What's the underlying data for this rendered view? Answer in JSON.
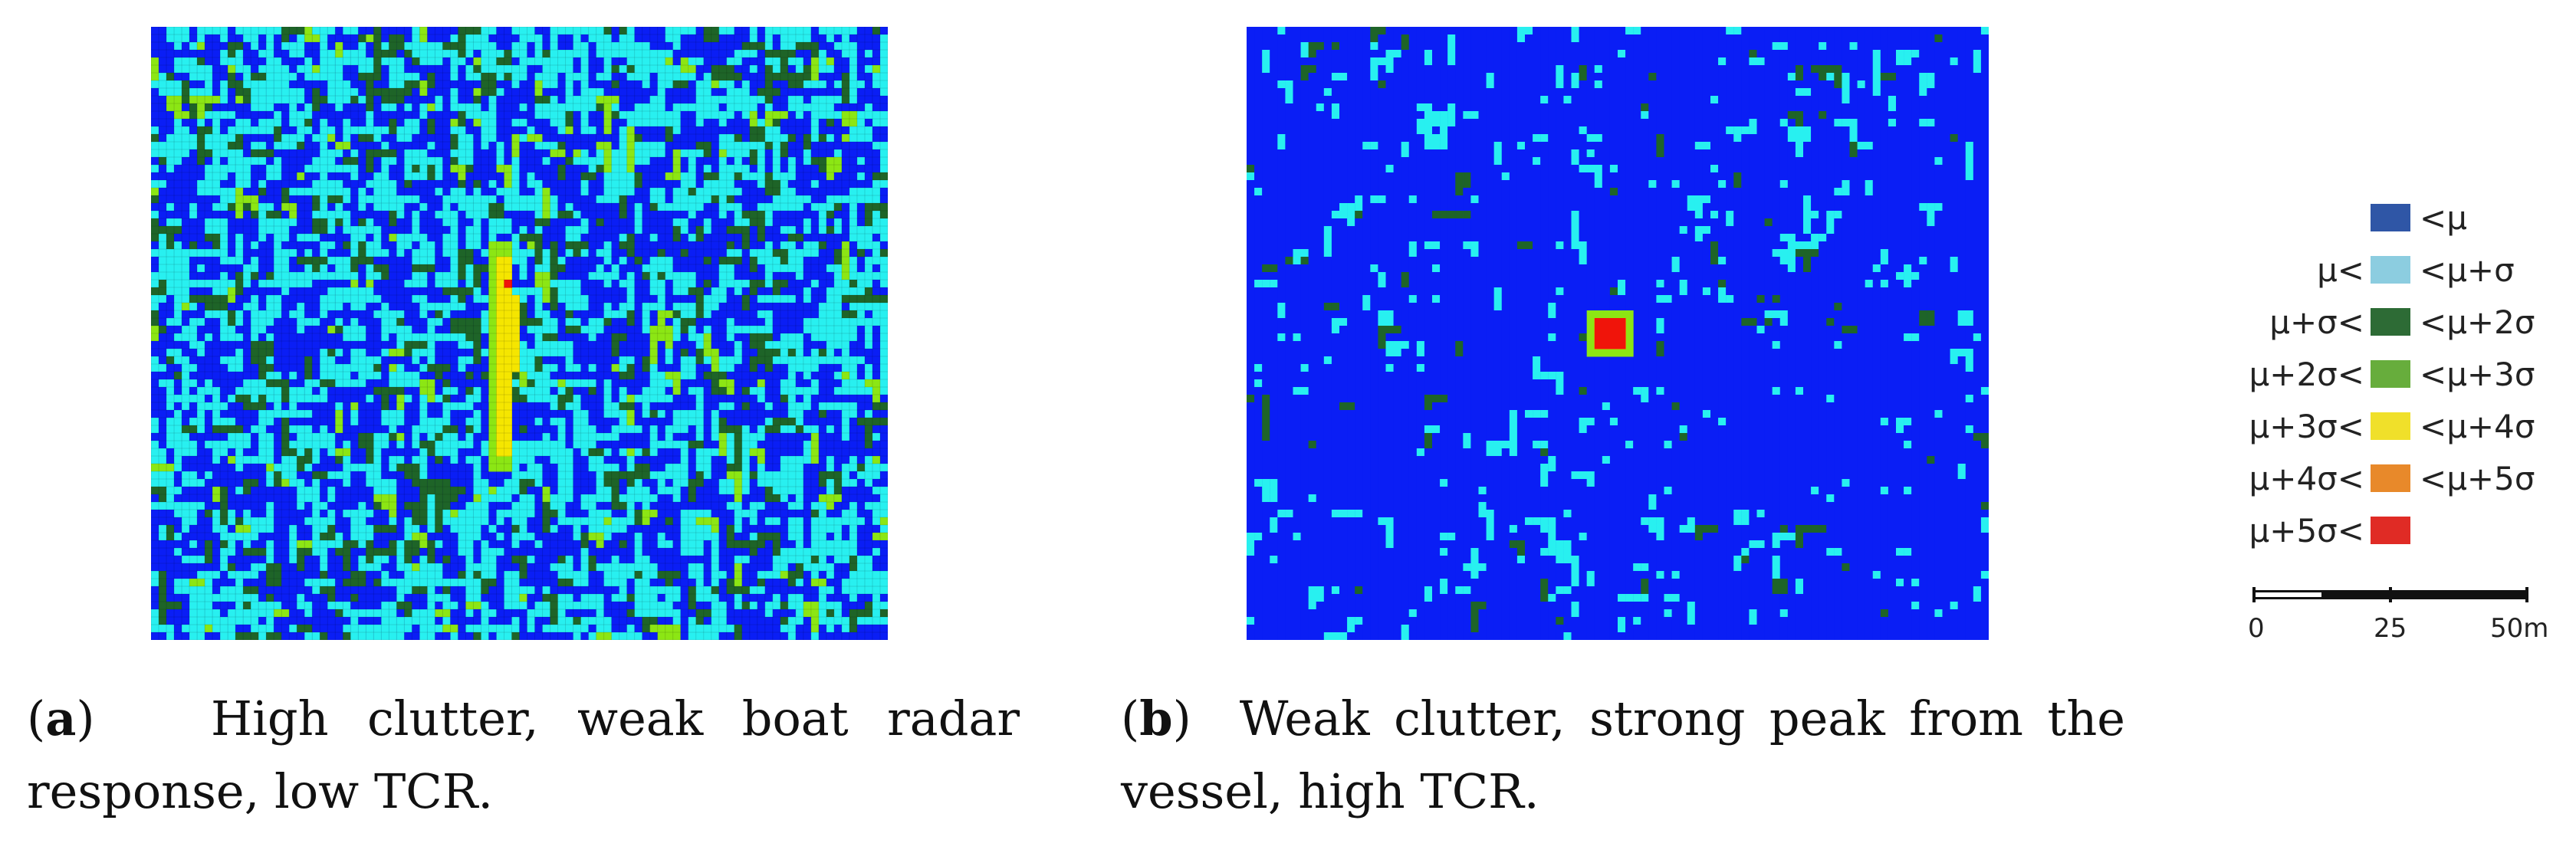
{
  "panels": [
    {
      "id": "a",
      "caption_letter": "a",
      "caption_text": "High clutter, weak boat radar response, low TCR.",
      "map": {
        "grid_cols": 96,
        "grid_rows": 80,
        "background_class": "lt_mu",
        "composition": {
          "lt_mu": 0.42,
          "mu_sigma": 0.42,
          "sigma_2sigma": 0.12,
          "2sigma_3sigma": 0.03
        },
        "peak_classes": [
          "2sigma_3sigma",
          "3sigma_4sigma",
          "gt_5sigma"
        ],
        "gridlines": true
      }
    },
    {
      "id": "b",
      "caption_letter": "b",
      "caption_text": "Weak clutter, strong peak from the vessel, high TCR.",
      "map": {
        "grid_cols": 96,
        "grid_rows": 80,
        "background_class": "lt_mu",
        "composition": {
          "lt_mu": 0.9,
          "mu_sigma": 0.08,
          "sigma_2sigma": 0.02
        },
        "peak_classes": [
          "2sigma_3sigma",
          "3sigma_4sigma",
          "gt_5sigma"
        ],
        "gridlines": false
      }
    }
  ],
  "legend": {
    "items": [
      {
        "lower": "",
        "upper": "<μ",
        "class": "lt_mu",
        "swatch": "#2f56a6",
        "map_color": "#0a1ef5"
      },
      {
        "lower": "μ<",
        "upper": "<μ+σ",
        "class": "mu_sigma",
        "swatch": "#8ccde0",
        "map_color": "#28f0f0"
      },
      {
        "lower": "μ+σ<",
        "upper": "<μ+2σ",
        "class": "sigma_2sigma",
        "swatch": "#2d6b35",
        "map_color": "#1e6428"
      },
      {
        "lower": "μ+2σ<",
        "upper": "<μ+3σ",
        "class": "2sigma_3sigma",
        "swatch": "#67ad3c",
        "map_color": "#8ce614"
      },
      {
        "lower": "μ+3σ<",
        "upper": "<μ+4σ",
        "class": "3sigma_4sigma",
        "swatch": "#f0e02a",
        "map_color": "#f5e600"
      },
      {
        "lower": "μ+4σ<",
        "upper": "<μ+5σ",
        "class": "4sigma_5sigma",
        "swatch": "#e8892a",
        "map_color": "#f08c1e"
      },
      {
        "lower": "μ+5σ<",
        "upper": "",
        "class": "gt_5sigma",
        "swatch": "#e02b25",
        "map_color": "#f0140a"
      }
    ]
  },
  "scale_bar": {
    "labels": [
      "0",
      "25",
      "50m"
    ]
  }
}
